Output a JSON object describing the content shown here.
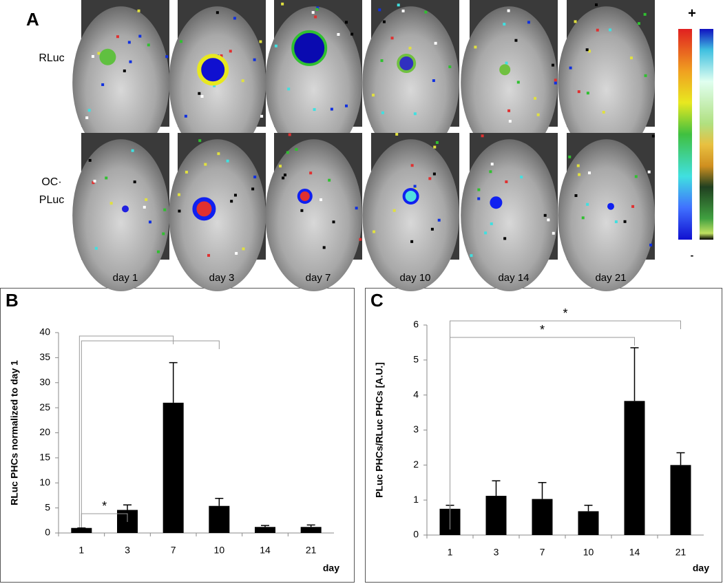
{
  "panel_a": {
    "label": "A",
    "rows": [
      [
        "RLuc"
      ],
      [
        "OC·",
        "PLuc"
      ]
    ],
    "days": [
      "day 1",
      "day 3",
      "day 7",
      "day 10",
      "day 14",
      "day 21"
    ],
    "scale_max": "+",
    "scale_min": "-"
  },
  "chart_data": [
    {
      "type": "bar",
      "panel": "B",
      "ylabel": "RLuc PHCs normalized to day 1",
      "xlabel": "day",
      "categories": [
        "1",
        "3",
        "7",
        "10",
        "14",
        "21"
      ],
      "values": [
        1,
        4.6,
        26,
        5.4,
        1.2,
        1.2
      ],
      "errors": [
        0,
        1.0,
        8,
        1.5,
        0.3,
        0.4
      ],
      "color": "#000000",
      "ylim": [
        0,
        40
      ],
      "yticks": [
        0,
        5,
        10,
        15,
        20,
        25,
        30,
        35,
        40
      ],
      "annotations": [
        "*"
      ]
    },
    {
      "type": "bar",
      "panel": "C",
      "ylabel": "PLuc PHCs/RLuc PHCs [A.U.]",
      "xlabel": "day",
      "categories": [
        "1",
        "3",
        "7",
        "10",
        "14",
        "21"
      ],
      "values": [
        0.75,
        1.12,
        1.03,
        0.68,
        3.83,
        2.0
      ],
      "errors": [
        0.1,
        0.43,
        0.47,
        0.17,
        1.52,
        0.35
      ],
      "color": "#000000",
      "ylim": [
        0,
        6
      ],
      "yticks": [
        0,
        1,
        2,
        3,
        4,
        5,
        6
      ],
      "annotations": [
        "*",
        "*"
      ]
    }
  ]
}
